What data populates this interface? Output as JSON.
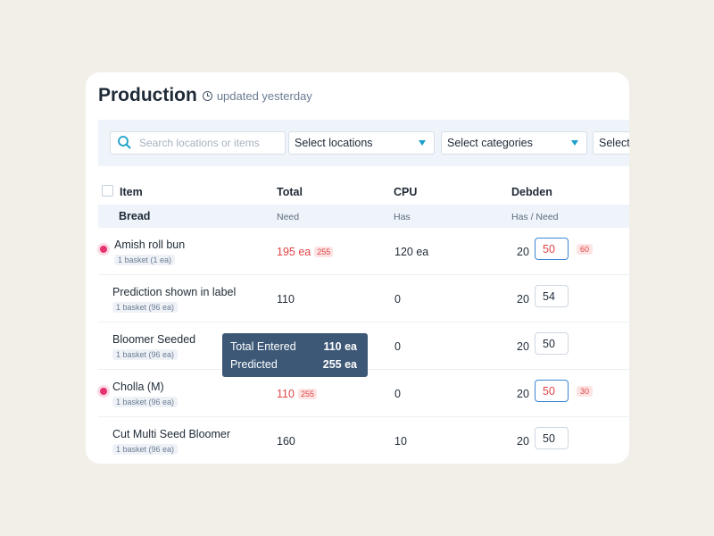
{
  "header": {
    "title": "Production",
    "updated": "updated yesterday"
  },
  "filters": {
    "search_placeholder": "Search locations or items",
    "locations": "Select locations",
    "categories": "Select categories",
    "third": "Select"
  },
  "columns": {
    "item": "Item",
    "total": "Total",
    "cpu": "CPU",
    "debden": "Debden"
  },
  "group": {
    "name": "Bread",
    "total_sub": "Need",
    "cpu_sub": "Has",
    "debden_sub": "Has / Need"
  },
  "rows": [
    {
      "name": "Amish roll bun",
      "basket": "1 basket (1 ea)",
      "total": "195 ea",
      "total_tag": "255",
      "cpu": "120 ea",
      "has": "20",
      "need": "50",
      "need_tag": "60"
    },
    {
      "name": "Prediction shown in label",
      "basket": "1 basket (96 ea)",
      "total": "110",
      "cpu": "0",
      "has": "20",
      "need": "54"
    },
    {
      "name": "Bloomer Seeded",
      "basket": "1 basket (96 ea)",
      "total": "",
      "cpu": "0",
      "has": "20",
      "need": "50"
    },
    {
      "name": "Cholla (M)",
      "basket": "1 basket (96 ea)",
      "total": "110",
      "total_tag": "255",
      "cpu": "0",
      "has": "20",
      "need": "50",
      "need_tag": "30"
    },
    {
      "name": "Cut Multi Seed Bloomer",
      "basket": "1 basket (96 ea)",
      "total": "160",
      "cpu": "10",
      "has": "20",
      "need": "50"
    }
  ],
  "tooltip": {
    "entered_label": "Total Entered",
    "entered_value": "110 ea",
    "predicted_label": "Predicted",
    "predicted_value": "255 ea"
  },
  "colors": {
    "accent": "#1ba0c9",
    "alert": "#e04545",
    "alert_dot": "#e7336b",
    "tooltip_bg": "#3d5877",
    "filter_bg": "#eef4fa"
  }
}
